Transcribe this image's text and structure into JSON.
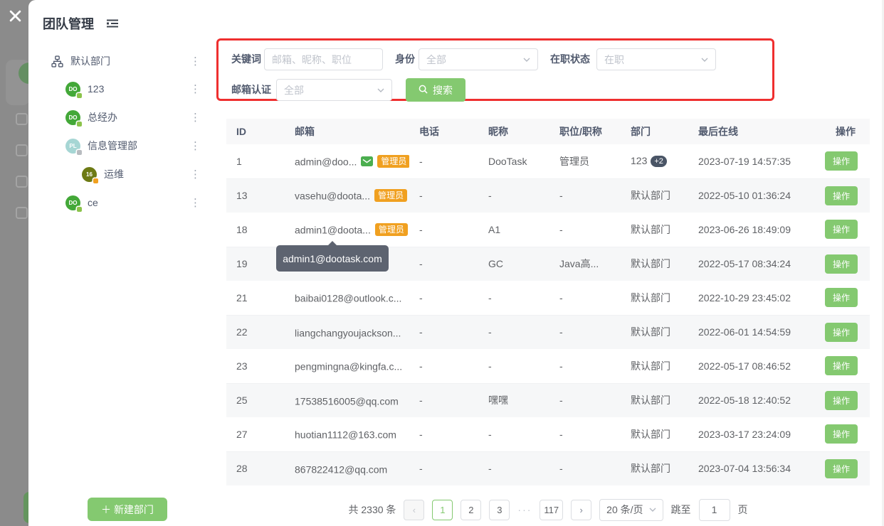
{
  "colors": {
    "green": "#84c970",
    "orange": "#f0a020",
    "red": "#ef2f2f",
    "tooltip": "#5d6370",
    "slate": "#4a5566"
  },
  "modal": {
    "title": "团队管理"
  },
  "sidebar": {
    "root_label": "默认部门",
    "items": [
      {
        "label": "123",
        "avatar_text": "DO",
        "avatar_color": "#43a838",
        "badge_color": "#8bc34a",
        "indent": 1
      },
      {
        "label": "总经办",
        "avatar_text": "DO",
        "avatar_color": "#43a838",
        "badge_color": "#8bc34a",
        "indent": 1
      },
      {
        "label": "信息管理部",
        "avatar_text": "PL",
        "avatar_color": "#a6d6d4",
        "badge_color": "#b8bcc0",
        "indent": 1
      },
      {
        "label": "运维",
        "avatar_text": "16",
        "avatar_color": "#6d7a14",
        "badge_color": "#f0a020",
        "indent": 2
      },
      {
        "label": "ce",
        "avatar_text": "DO",
        "avatar_color": "#43a838",
        "badge_color": "#8bc34a",
        "indent": 1
      }
    ],
    "new_department_label": "新建部门"
  },
  "filters": {
    "keyword_label": "关键词",
    "keyword_placeholder": "邮箱、昵称、职位",
    "identity_label": "身份",
    "identity_value": "全部",
    "employment_label": "在职状态",
    "employment_value": "在职",
    "email_verify_label": "邮箱认证",
    "email_verify_value": "全部",
    "search_label": "搜索"
  },
  "table": {
    "headers": [
      "ID",
      "邮箱",
      "电话",
      "昵称",
      "职位/职称",
      "部门",
      "最后在线",
      "操作"
    ],
    "admin_badge_label": "管理员",
    "action_label": "操作",
    "rows": [
      {
        "id": "1",
        "email": "admin@doo...",
        "verified": true,
        "admin": true,
        "phone": "-",
        "nickname": "DooTask",
        "position": "管理员",
        "department": "123",
        "dept_badge": "+2",
        "last_online": "2023-07-19 14:57:35"
      },
      {
        "id": "13",
        "email": "vasehu@doota...",
        "verified": false,
        "admin": true,
        "phone": "-",
        "nickname": "-",
        "position": "-",
        "department": "默认部门",
        "dept_badge": "",
        "last_online": "2022-05-10 01:36:24"
      },
      {
        "id": "18",
        "email": "admin1@doota...",
        "verified": false,
        "admin": true,
        "phone": "-",
        "nickname": "A1",
        "position": "-",
        "department": "默认部门",
        "dept_badge": "",
        "last_online": "2023-06-26 18:49:09"
      },
      {
        "id": "19",
        "email": "",
        "verified": false,
        "admin": false,
        "phone": "-",
        "nickname": "GC",
        "position": "Java高...",
        "department": "默认部门",
        "dept_badge": "",
        "last_online": "2022-05-17 08:34:24"
      },
      {
        "id": "21",
        "email": "baibai0128@outlook.c...",
        "verified": false,
        "admin": false,
        "phone": "-",
        "nickname": "-",
        "position": "-",
        "department": "默认部门",
        "dept_badge": "",
        "last_online": "2022-10-29 23:45:02"
      },
      {
        "id": "22",
        "email": "liangchangyoujackson...",
        "verified": false,
        "admin": false,
        "phone": "-",
        "nickname": "-",
        "position": "-",
        "department": "默认部门",
        "dept_badge": "",
        "last_online": "2022-06-01 14:54:59"
      },
      {
        "id": "23",
        "email": "pengmingna@kingfa.c...",
        "verified": false,
        "admin": false,
        "phone": "-",
        "nickname": "-",
        "position": "-",
        "department": "默认部门",
        "dept_badge": "",
        "last_online": "2022-05-17 08:46:52"
      },
      {
        "id": "25",
        "email": "17538516005@qq.com",
        "verified": false,
        "admin": false,
        "phone": "-",
        "nickname": "嘿嘿",
        "position": "-",
        "department": "默认部门",
        "dept_badge": "",
        "last_online": "2022-05-18 12:40:52"
      },
      {
        "id": "27",
        "email": "huotian1112@163.com",
        "verified": false,
        "admin": false,
        "phone": "-",
        "nickname": "-",
        "position": "-",
        "department": "默认部门",
        "dept_badge": "",
        "last_online": "2023-03-17 23:24:09"
      },
      {
        "id": "28",
        "email": "867822412@qq.com",
        "verified": false,
        "admin": false,
        "phone": "-",
        "nickname": "-",
        "position": "-",
        "department": "默认部门",
        "dept_badge": "",
        "last_online": "2023-07-04 13:56:34"
      }
    ]
  },
  "tooltip": {
    "text": "admin1@dootask.com"
  },
  "pagination": {
    "total_text": "共 2330 条",
    "prev_icon": "‹",
    "next_icon": "›",
    "pages": [
      "1",
      "2",
      "3"
    ],
    "current_page": "1",
    "ellipsis": "···",
    "last_page": "117",
    "page_size_value": "20 条/页",
    "jump_label": "跳至",
    "jump_value": "1",
    "jump_unit": "页"
  }
}
